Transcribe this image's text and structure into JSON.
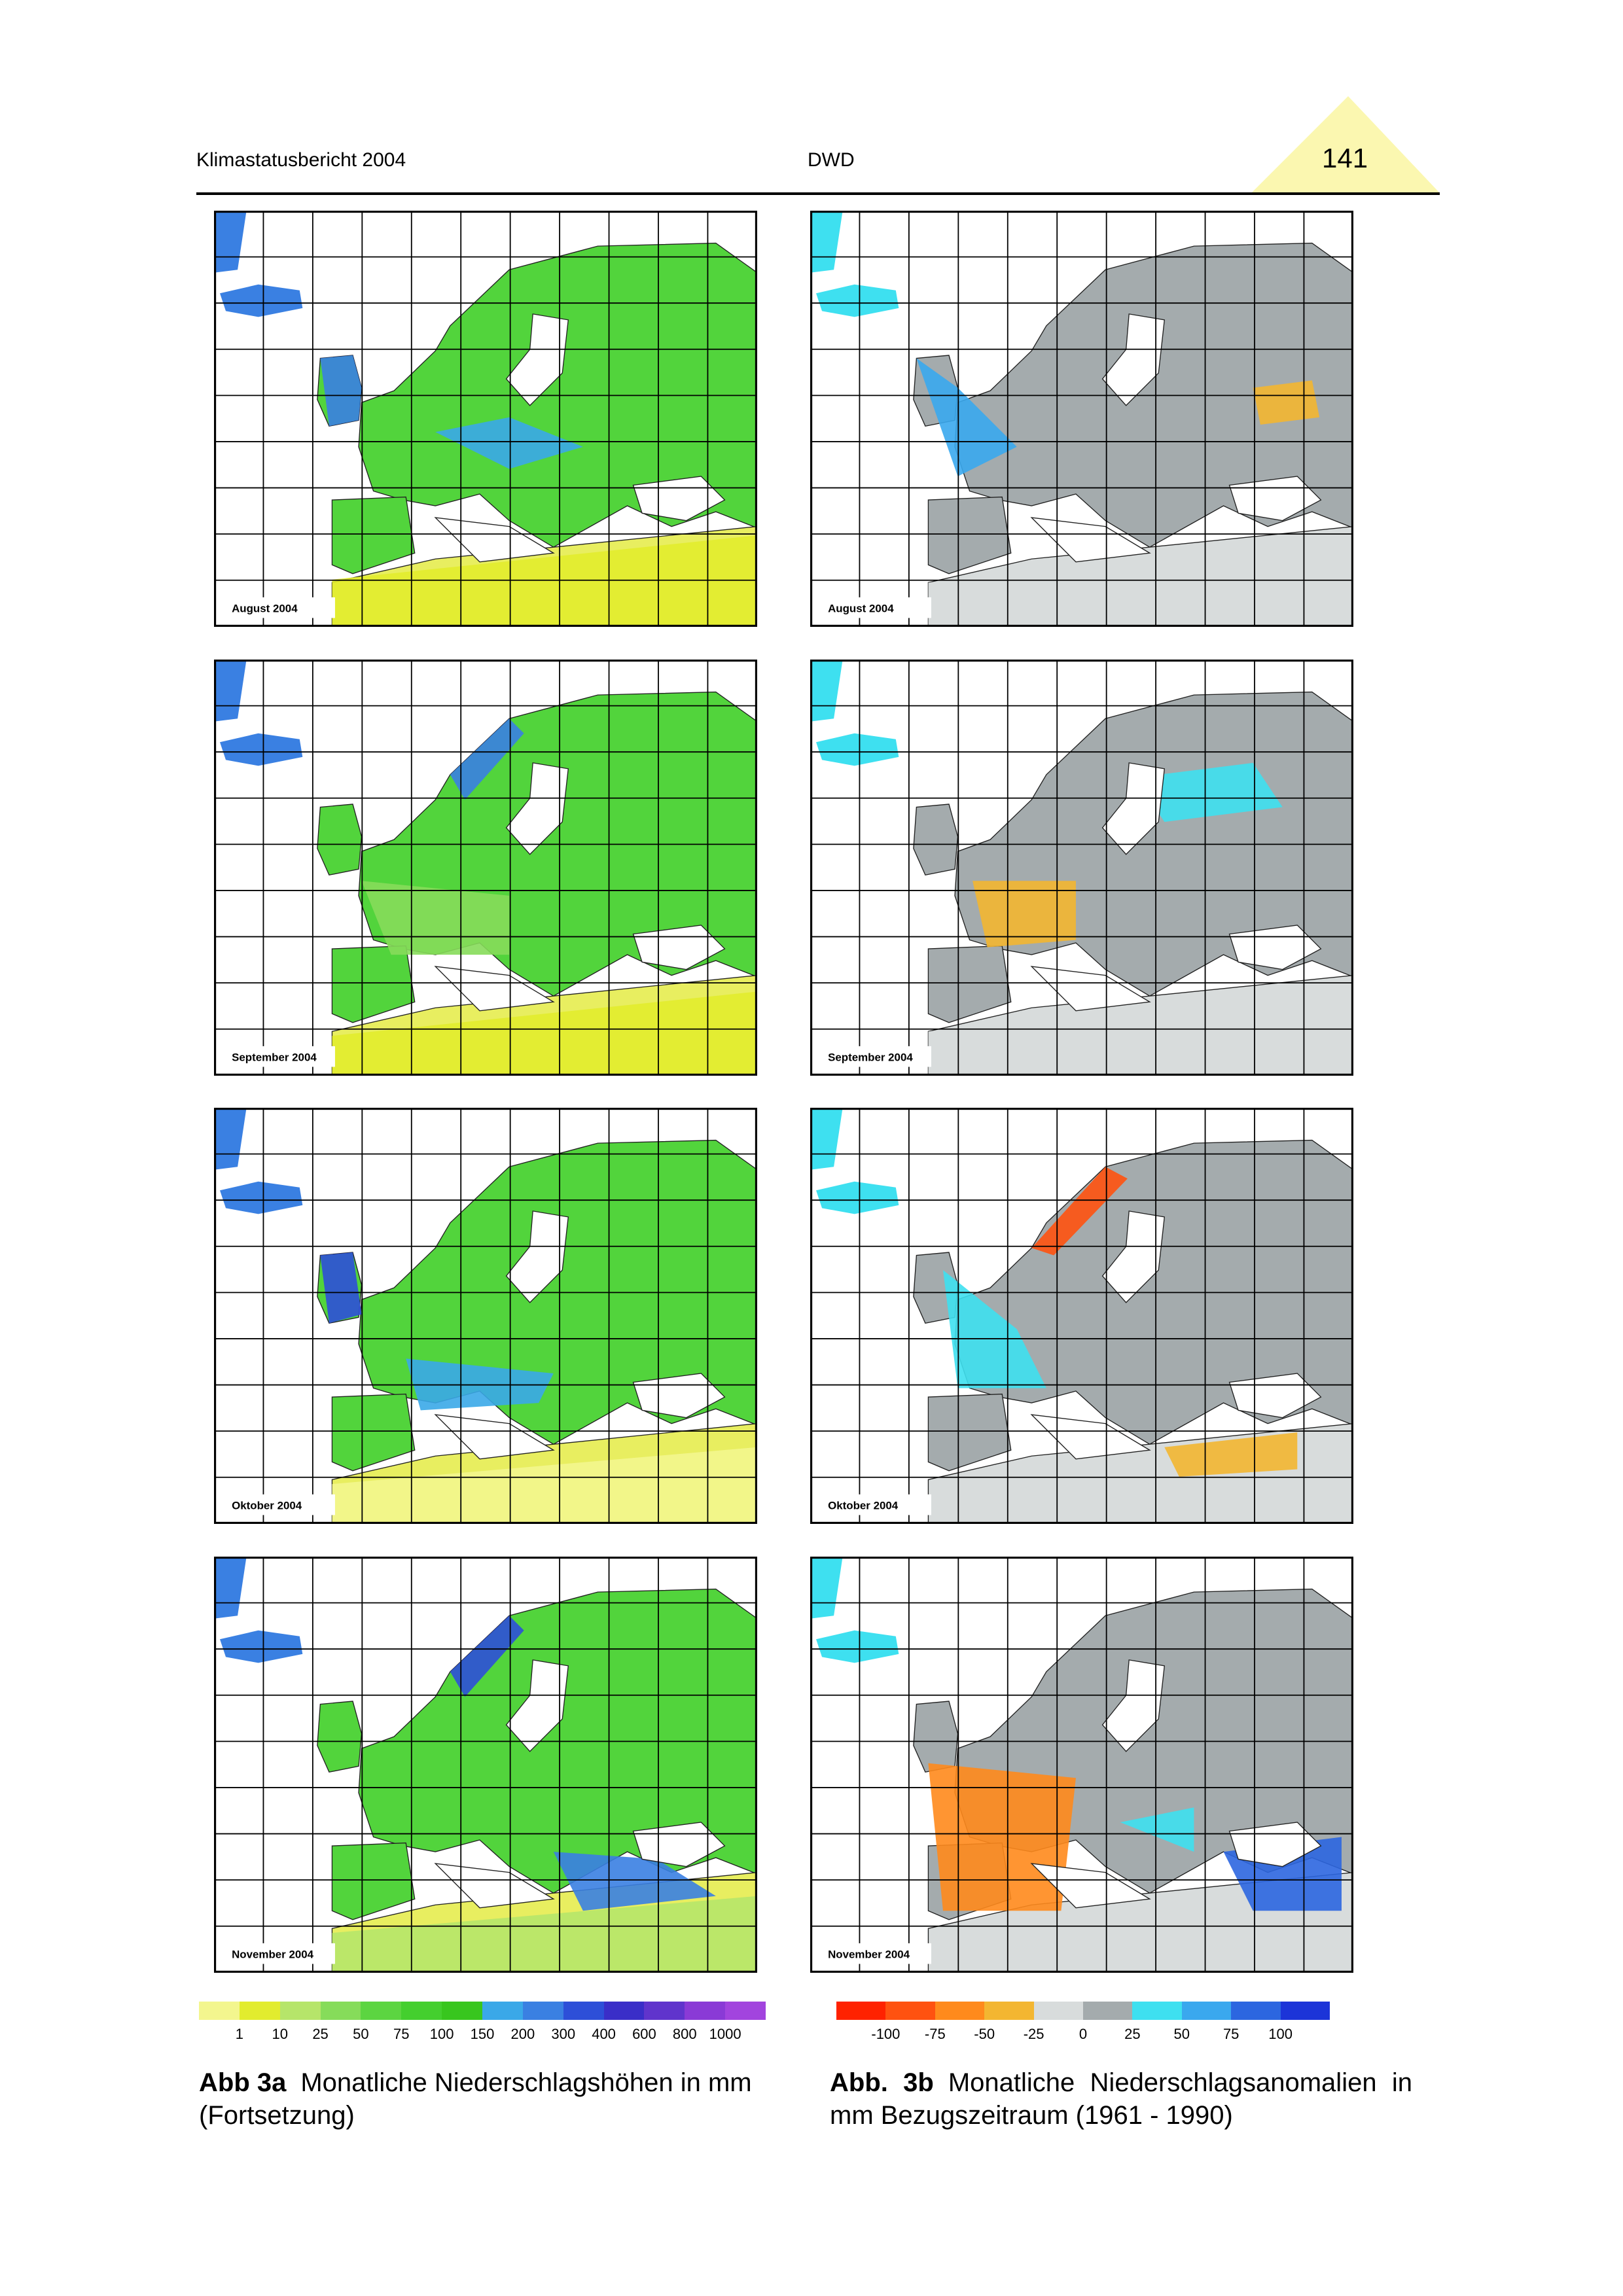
{
  "header": {
    "left": "Klimastatusbericht 2004",
    "center": "DWD",
    "page_number": "141"
  },
  "maps": {
    "left": [
      "August 2004",
      "September 2004",
      "Oktober 2004",
      "November 2004"
    ],
    "right": [
      "August 2004",
      "September 2004",
      "Oktober 2004",
      "November 2004"
    ]
  },
  "legends": {
    "left": {
      "labels": [
        "1",
        "10",
        "25",
        "50",
        "75",
        "100",
        "150",
        "200",
        "300",
        "400",
        "600",
        "800",
        "1000"
      ],
      "colors": [
        "#f3f68e",
        "#e2ec2e",
        "#b6e56a",
        "#86dc5a",
        "#5cd541",
        "#44cf2e",
        "#38c61e",
        "#3aa8e8",
        "#3a80e2",
        "#2d4fd8",
        "#3a2ec8",
        "#6034cc",
        "#8a3ad6",
        "#a244de"
      ]
    },
    "right": {
      "labels": [
        "-100",
        "-75",
        "-50",
        "-25",
        "0",
        "25",
        "50",
        "75",
        "100"
      ],
      "colors": [
        "#ff2200",
        "#ff5210",
        "#ff8a1c",
        "#f3b631",
        "#d8dcdc",
        "#a4abad",
        "#3ee0f0",
        "#3aa8ee",
        "#2c66e0",
        "#1c34d8"
      ]
    }
  },
  "captions": {
    "left": {
      "label": "Abb 3a",
      "text": "Monatliche Niederschlagshöhen in mm (Fortsetzung)"
    },
    "right": {
      "label": "Abb. 3b",
      "text": "Monatliche Niederschlagsanomalien in mm Bezugszeitraum (1961 - 1990)"
    }
  }
}
